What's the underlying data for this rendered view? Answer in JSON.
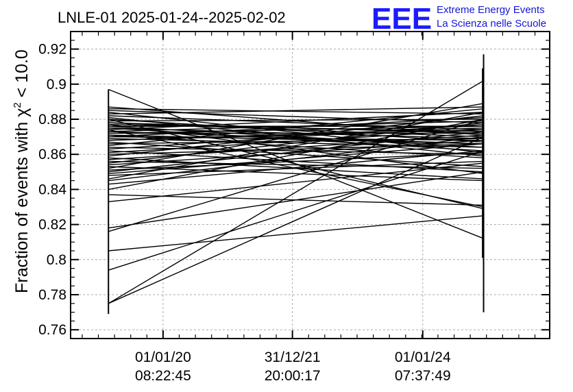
{
  "header": {
    "title": "LNLE-01 2025-01-24--2025-02-02"
  },
  "logo": {
    "mark": "EEE",
    "line1": "Extreme Energy Events",
    "line2": "La Scienza nelle Scuole",
    "color": "#1b1bff"
  },
  "chart_data": {
    "type": "line",
    "title": "LNLE-01 2025-01-24--2025-02-02",
    "ylabel_prefix": "Fraction of events with ",
    "ylabel_chi": "χ",
    "ylabel_sup": "2",
    "ylabel_suffix": " < 10.0",
    "ylim": [
      0.755,
      0.93
    ],
    "xlim": [
      0.0,
      1.0
    ],
    "y_ticks": [
      0.76,
      0.78,
      0.8,
      0.82,
      0.84,
      0.86,
      0.88,
      0.9,
      0.92
    ],
    "y_tick_labels": [
      "0.76",
      "0.78",
      "0.8",
      "0.82",
      "0.84",
      "0.86",
      "0.88",
      "0.9",
      "0.92"
    ],
    "x_ticks": [
      0.193,
      0.463,
      0.735
    ],
    "x_tick_labels": [
      {
        "date": "01/01/20",
        "time": "08:22:45"
      },
      {
        "date": "31/12/21",
        "time": "20:00:17"
      },
      {
        "date": "01/01/24",
        "time": "07:37:49"
      }
    ],
    "grid": true,
    "x_start": 0.079,
    "x_end": 0.862,
    "vertical_spans": [
      {
        "x": 0.079,
        "ymin": 0.769,
        "ymax": 0.897
      },
      {
        "x": 0.862,
        "ymin": 0.77,
        "ymax": 0.917
      },
      {
        "x": 0.86,
        "ymin": 0.801,
        "ymax": 0.909
      }
    ],
    "segments": [
      [
        0.897,
        0.812
      ],
      [
        0.775,
        0.902
      ],
      [
        0.775,
        0.87
      ],
      [
        0.794,
        0.862
      ],
      [
        0.805,
        0.825
      ],
      [
        0.816,
        0.88
      ],
      [
        0.818,
        0.85
      ],
      [
        0.833,
        0.855
      ],
      [
        0.837,
        0.831
      ],
      [
        0.84,
        0.88
      ],
      [
        0.843,
        0.862
      ],
      [
        0.845,
        0.87
      ],
      [
        0.846,
        0.884
      ],
      [
        0.848,
        0.856
      ],
      [
        0.849,
        0.866
      ],
      [
        0.85,
        0.873
      ],
      [
        0.851,
        0.861
      ],
      [
        0.852,
        0.889
      ],
      [
        0.853,
        0.845
      ],
      [
        0.854,
        0.868
      ],
      [
        0.855,
        0.878
      ],
      [
        0.856,
        0.852
      ],
      [
        0.857,
        0.871
      ],
      [
        0.858,
        0.846
      ],
      [
        0.859,
        0.882
      ],
      [
        0.86,
        0.866
      ],
      [
        0.861,
        0.874
      ],
      [
        0.862,
        0.85
      ],
      [
        0.863,
        0.877
      ],
      [
        0.864,
        0.86
      ],
      [
        0.865,
        0.886
      ],
      [
        0.866,
        0.869
      ],
      [
        0.867,
        0.853
      ],
      [
        0.868,
        0.874
      ],
      [
        0.869,
        0.864
      ],
      [
        0.87,
        0.881
      ],
      [
        0.871,
        0.858
      ],
      [
        0.872,
        0.872
      ],
      [
        0.873,
        0.866
      ],
      [
        0.874,
        0.884
      ],
      [
        0.875,
        0.862
      ],
      [
        0.876,
        0.876
      ],
      [
        0.877,
        0.849
      ],
      [
        0.878,
        0.87
      ],
      [
        0.879,
        0.88
      ],
      [
        0.88,
        0.867
      ],
      [
        0.881,
        0.859
      ],
      [
        0.882,
        0.874
      ],
      [
        0.883,
        0.887
      ],
      [
        0.884,
        0.861
      ],
      [
        0.885,
        0.878
      ],
      [
        0.886,
        0.883
      ],
      [
        0.887,
        0.871
      ],
      [
        0.874,
        0.83
      ],
      [
        0.88,
        0.829
      ],
      [
        0.872,
        0.876
      ],
      [
        0.876,
        0.864
      ],
      [
        0.878,
        0.872
      ],
      [
        0.87,
        0.868
      ],
      [
        0.873,
        0.879
      ],
      [
        0.875,
        0.869
      ],
      [
        0.868,
        0.875
      ],
      [
        0.871,
        0.866
      ],
      [
        0.877,
        0.873
      ]
    ]
  }
}
